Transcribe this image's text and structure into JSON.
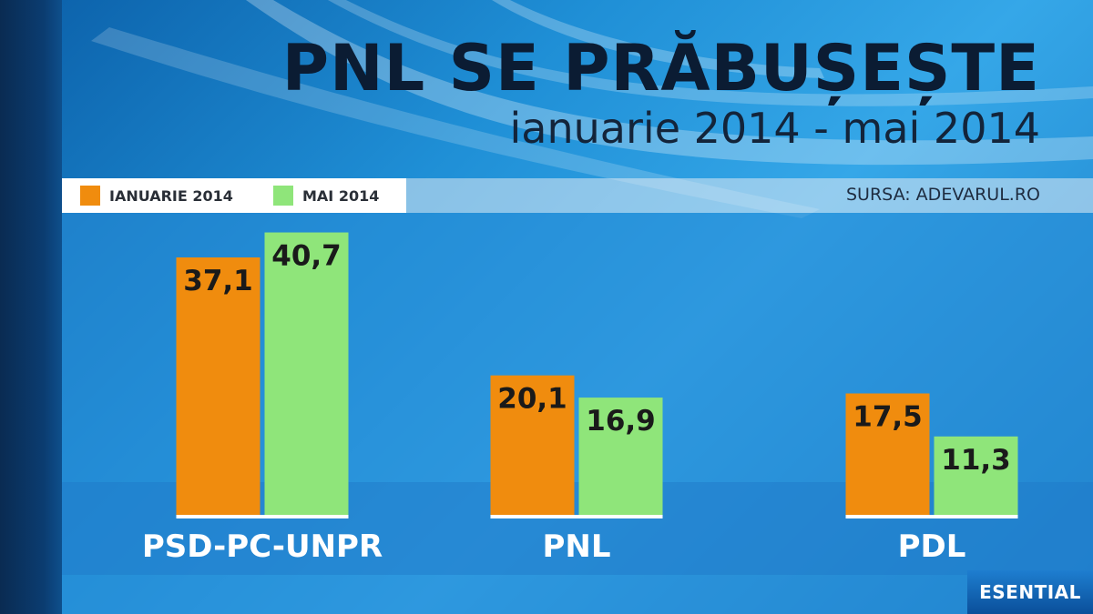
{
  "title": "PNL SE PRĂBUȘEȘTE",
  "subtitle": "ianuarie 2014 - mai 2014",
  "source": "SURSA: ADEVARUL.RO",
  "logo": "ESENTIAL",
  "colors": {
    "series_1": "#f08c0e",
    "series_2": "#8fe57a",
    "label_text": "#1a1a1a",
    "category_text": "#ffffff"
  },
  "chart_data": {
    "type": "bar",
    "title": "PNL SE PRĂBUȘEȘTE",
    "subtitle": "ianuarie 2014 - mai 2014",
    "categories": [
      "PSD-PC-UNPR",
      "PNL",
      "PDL"
    ],
    "series": [
      {
        "name": "IANUARIE 2014",
        "values": [
          37.1,
          20.1,
          17.5
        ],
        "labels": [
          "37,1",
          "20,1",
          "17,5"
        ]
      },
      {
        "name": "MAI 2014",
        "values": [
          40.7,
          16.9,
          11.3
        ],
        "labels": [
          "40,7",
          "16,9",
          "11,3"
        ]
      }
    ],
    "xlabel": "",
    "ylabel": "",
    "ylim": [
      0,
      43
    ],
    "grid": false,
    "legend": "top-left"
  }
}
